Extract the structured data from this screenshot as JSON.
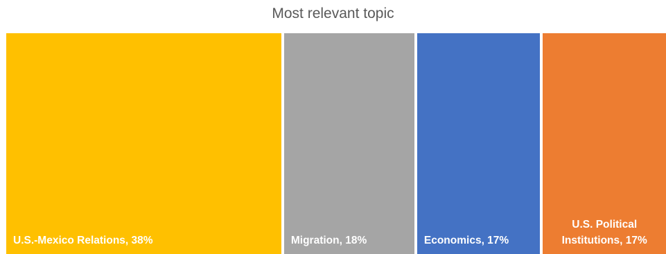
{
  "chart_data": {
    "type": "treemap",
    "title": "Most relevant topic",
    "unit": "%",
    "items": [
      {
        "name": "U.S.-Mexico Relations",
        "value": 38,
        "color": "#FFC000",
        "label_lines": [
          "U.S.-Mexico Relations, 38%"
        ]
      },
      {
        "name": "Migration",
        "value": 18,
        "color": "#A5A5A5",
        "label_lines": [
          "Migration, 18%"
        ]
      },
      {
        "name": "Economics",
        "value": 17,
        "color": "#4472C4",
        "label_lines": [
          "Economics, 17%"
        ]
      },
      {
        "name": "U.S. Political Institutions",
        "value": 17,
        "color": "#ED7D31",
        "label_lines": [
          "U.S. Political",
          "Institutions, 17%"
        ]
      }
    ]
  }
}
